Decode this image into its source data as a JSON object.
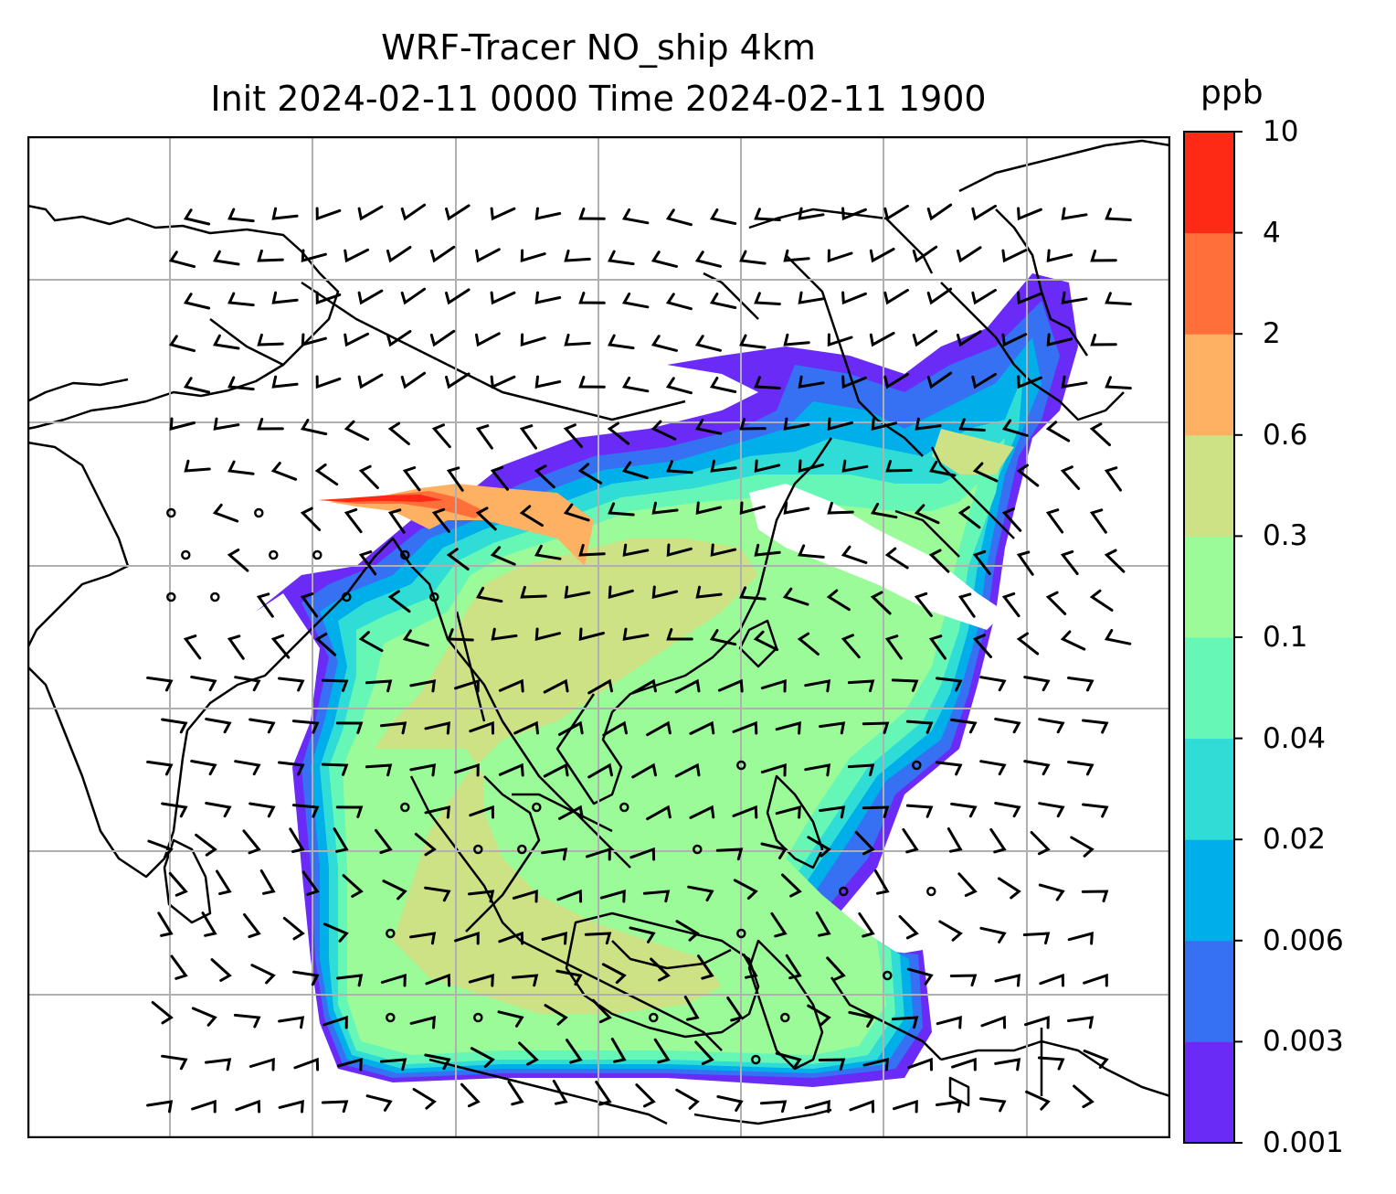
{
  "title": {
    "line1": "WRF-Tracer NO_ship 4km",
    "line2": "Init 2024-02-11 0000 Time 2024-02-11 1900"
  },
  "colorbar": {
    "title": "ppb",
    "levels": [
      "0.001",
      "0.003",
      "0.006",
      "0.02",
      "0.04",
      "0.1",
      "0.3",
      "0.6",
      "2",
      "4",
      "10"
    ],
    "colors": [
      "#6a2bf7",
      "#3571f2",
      "#00aeea",
      "#2fdcd6",
      "#66f7b7",
      "#9bfb98",
      "#cde185",
      "#feb063",
      "#ff6f3a",
      "#ff2a15"
    ]
  },
  "map": {
    "variable": "NO_ship",
    "units": "ppb",
    "gridlines": true,
    "overlay": "wind-barbs",
    "land_color": "#ffffff",
    "coastline_color": "#000000",
    "grid_color": "#b0b0b0"
  }
}
